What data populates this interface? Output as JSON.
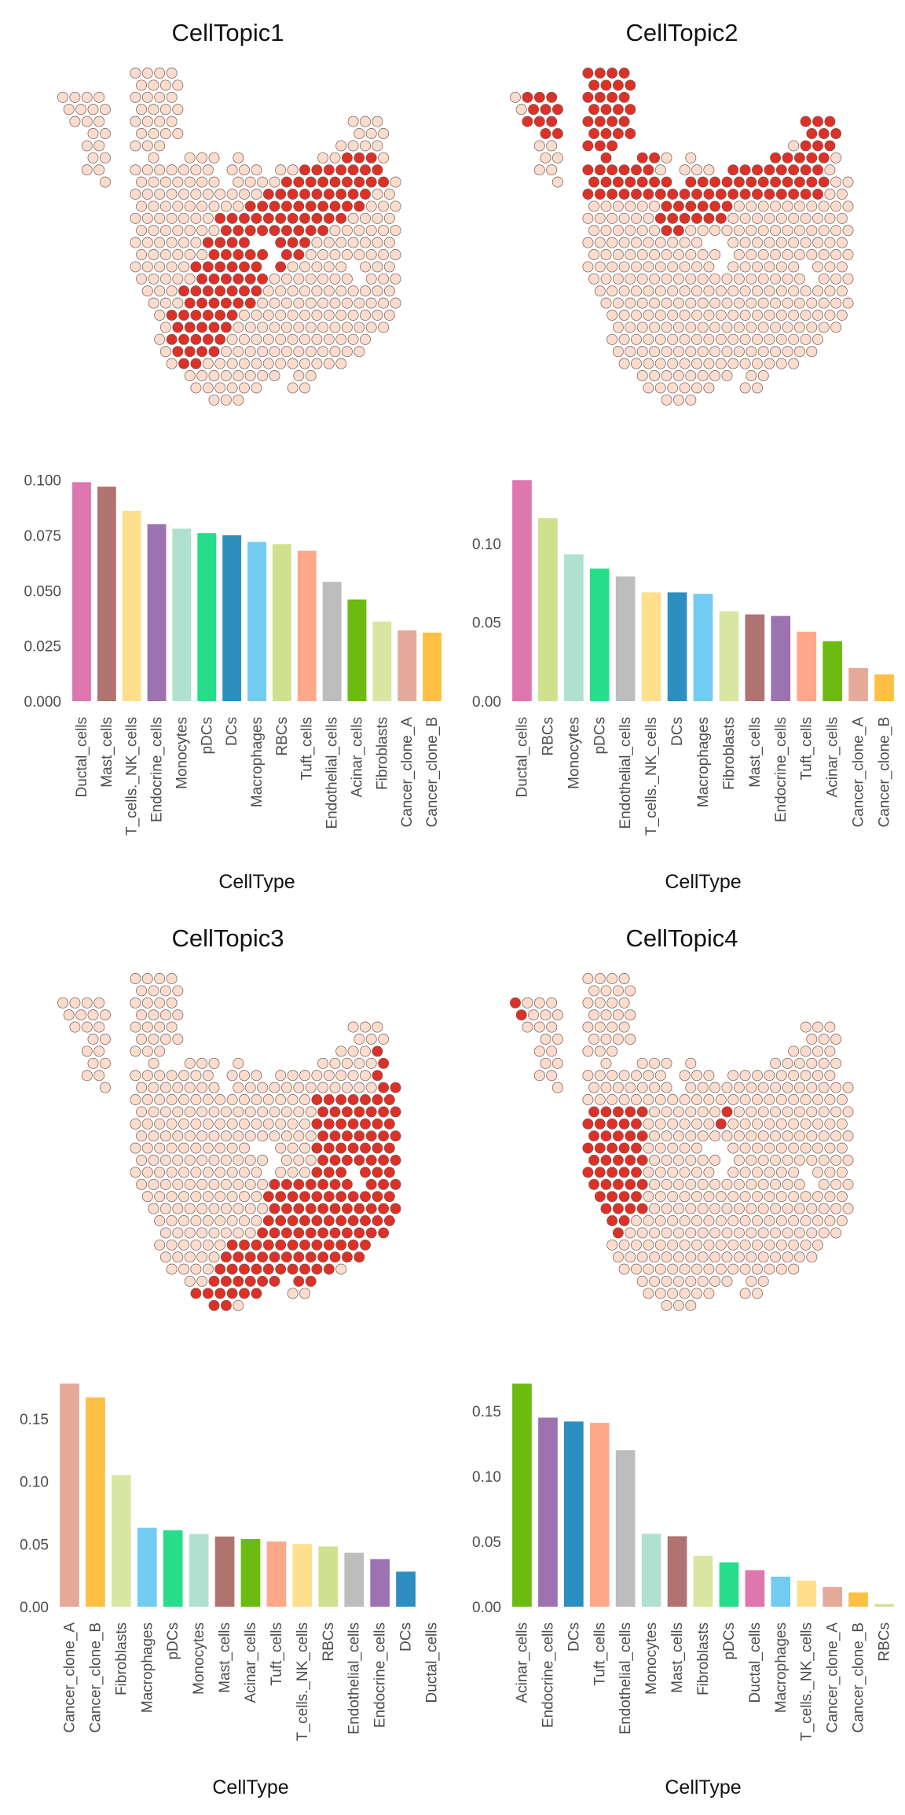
{
  "colors": {
    "spot_high": "#dd3128",
    "spot_low": "#fcdccd",
    "spot_stroke": "#6e5a55",
    "cell_types": {
      "Ductal_cells": "#de77ae",
      "Mast_cells": "#b07470",
      "T_cells._NK_cells": "#fedf8c",
      "Endocrine_cells": "#9c72b0",
      "Monocytes": "#b0e0d0",
      "pDCs": "#28dd8a",
      "DCs": "#2c8fc0",
      "Macrophages": "#72ccf2",
      "RBCs": "#cfe18f",
      "Tuft_cells": "#fea78a",
      "Endothelial_cells": "#bdbdbd",
      "Acinar_cells": "#6bbb10",
      "Fibroblasts": "#d9e6a2",
      "Cancer_clone_A": "#e5a99a",
      "Cancer_clone_B": "#fec044"
    }
  },
  "chart_data": [
    {
      "type": "scatter",
      "title": "CellTopic1",
      "description_of_marks": "spatial spot map; each spot coloured high/low topic weight",
      "high_region": "central diagonal band (lower-left to upper-right)"
    },
    {
      "type": "scatter",
      "title": "CellTopic2",
      "high_region": "upper band across top of tissue"
    },
    {
      "type": "bar",
      "xlabel": "CellType",
      "ylabel": "",
      "ylim": [
        0,
        0.102
      ],
      "yticks": [
        "0.000",
        "0.025",
        "0.050",
        "0.075",
        "0.100"
      ],
      "categories": [
        "Ductal_cells",
        "Mast_cells",
        "T_cells._NK_cells",
        "Endocrine_cells",
        "Monocytes",
        "pDCs",
        "DCs",
        "Macrophages",
        "RBCs",
        "Tuft_cells",
        "Endothelial_cells",
        "Acinar_cells",
        "Fibroblasts",
        "Cancer_clone_A",
        "Cancer_clone_B"
      ],
      "values": [
        0.099,
        0.097,
        0.086,
        0.08,
        0.078,
        0.076,
        0.075,
        0.072,
        0.071,
        0.068,
        0.054,
        0.046,
        0.036,
        0.032,
        0.031
      ]
    },
    {
      "type": "bar",
      "xlabel": "CellType",
      "ylabel": "",
      "ylim": [
        0,
        0.143
      ],
      "yticks": [
        "0.00",
        "0.05",
        "0.10"
      ],
      "categories": [
        "Ductal_cells",
        "RBCs",
        "Monocytes",
        "pDCs",
        "Endothelial_cells",
        "T_cells._NK_cells",
        "DCs",
        "Macrophages",
        "Fibroblasts",
        "Mast_cells",
        "Endocrine_cells",
        "Tuft_cells",
        "Acinar_cells",
        "Cancer_clone_A",
        "Cancer_clone_B"
      ],
      "values": [
        0.14,
        0.116,
        0.093,
        0.084,
        0.079,
        0.069,
        0.069,
        0.068,
        0.057,
        0.055,
        0.054,
        0.044,
        0.038,
        0.021,
        0.017
      ]
    },
    {
      "type": "scatter",
      "title": "CellTopic3",
      "high_region": "right side and lower-right of tissue"
    },
    {
      "type": "scatter",
      "title": "CellTopic4",
      "high_region": "left-middle block"
    },
    {
      "type": "bar",
      "xlabel": "CellType",
      "ylabel": "",
      "ylim": [
        0,
        0.18
      ],
      "yticks": [
        "0.00",
        "0.05",
        "0.10",
        "0.15"
      ],
      "categories": [
        "Cancer_clone_A",
        "Cancer_clone_B",
        "Fibroblasts",
        "Macrophages",
        "pDCs",
        "Monocytes",
        "Mast_cells",
        "Acinar_cells",
        "Tuft_cells",
        "T_cells._NK_cells",
        "RBCs",
        "Endothelial_cells",
        "Endocrine_cells",
        "DCs",
        "Ductal_cells"
      ],
      "values": [
        0.178,
        0.167,
        0.105,
        0.063,
        0.061,
        0.058,
        0.056,
        0.054,
        0.052,
        0.05,
        0.048,
        0.043,
        0.038,
        0.028,
        0.0
      ]
    },
    {
      "type": "bar",
      "xlabel": "CellType",
      "ylabel": "",
      "ylim": [
        0,
        0.173
      ],
      "yticks": [
        "0.00",
        "0.05",
        "0.10",
        "0.15"
      ],
      "categories": [
        "Acinar_cells",
        "Endocrine_cells",
        "DCs",
        "Tuft_cells",
        "Endothelial_cells",
        "Monocytes",
        "Mast_cells",
        "Fibroblasts",
        "pDCs",
        "Ductal_cells",
        "Macrophages",
        "T_cells._NK_cells",
        "Cancer_clone_A",
        "Cancer_clone_B",
        "RBCs"
      ],
      "values": [
        0.171,
        0.145,
        0.142,
        0.141,
        0.12,
        0.056,
        0.054,
        0.039,
        0.034,
        0.028,
        0.023,
        0.02,
        0.015,
        0.011,
        0.002
      ]
    }
  ]
}
